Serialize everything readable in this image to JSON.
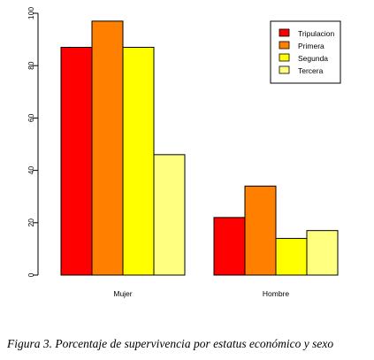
{
  "caption": "Figura 3. Porcentaje de supervivencia por estatus económico y sexo",
  "chart_data": {
    "type": "bar",
    "categories": [
      "Mujer",
      "Hombre"
    ],
    "series": [
      {
        "name": "Tripulacion",
        "color": "#ff0000",
        "values": [
          87,
          22
        ]
      },
      {
        "name": "Primera",
        "color": "#ff8000",
        "values": [
          97,
          34
        ]
      },
      {
        "name": "Segunda",
        "color": "#ffff00",
        "values": [
          87,
          14
        ]
      },
      {
        "name": "Tercera",
        "color": "#ffff80",
        "values": [
          46,
          17
        ]
      }
    ],
    "y_ticks": [
      0,
      20,
      40,
      60,
      80,
      100
    ],
    "ylim": [
      0,
      100
    ],
    "legend_position": "top-right",
    "grid": false
  }
}
